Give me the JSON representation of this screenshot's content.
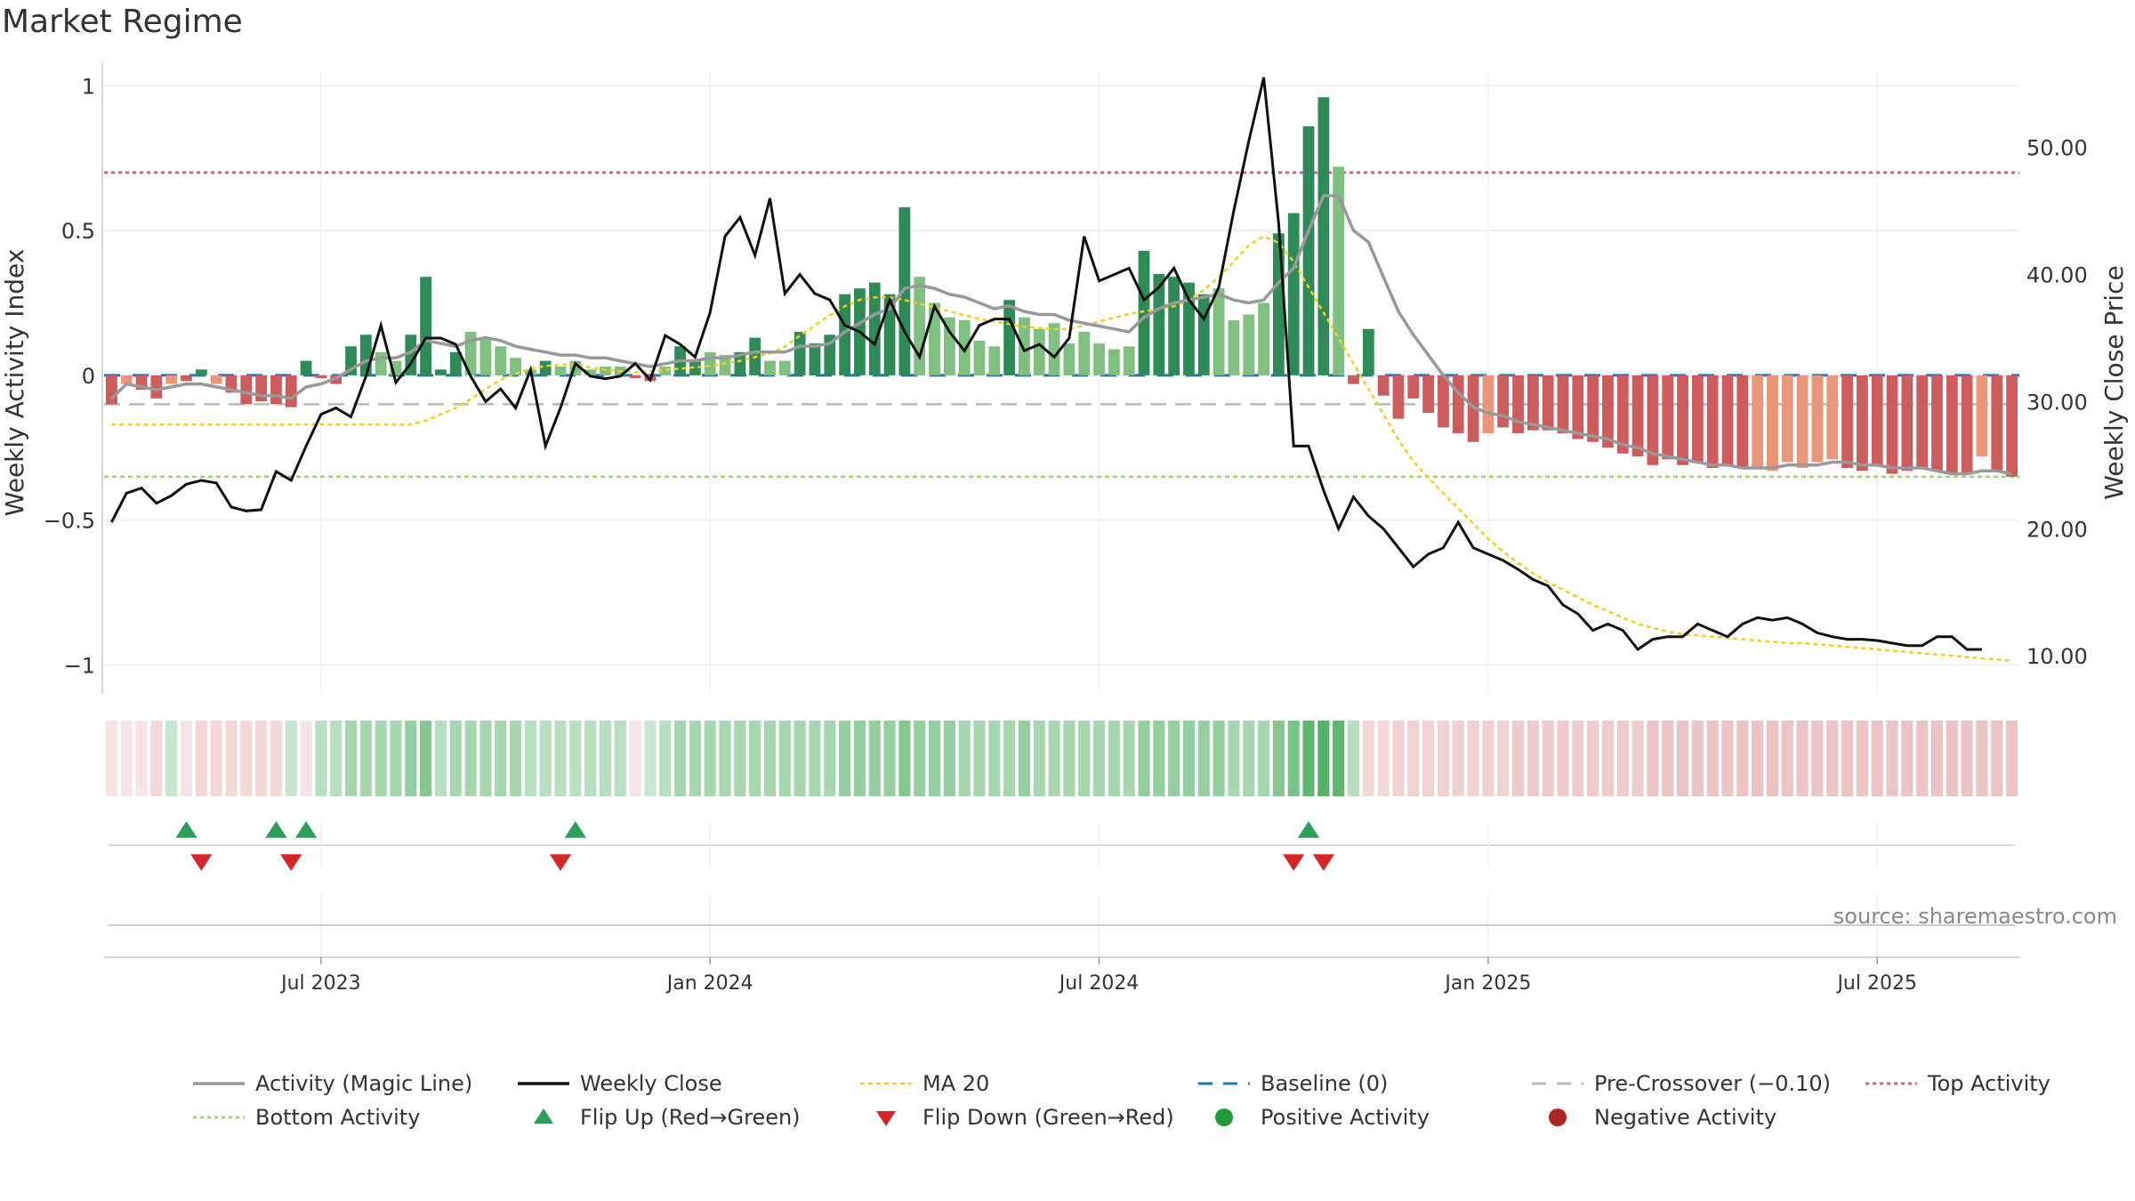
{
  "chart_data": {
    "type": "bar",
    "title": "Market Regime",
    "source_note": "source: sharemaestro.com",
    "left_axis": {
      "label": "Weekly Activity Index",
      "min": -1.1,
      "max": 1.05,
      "ticks": [
        1,
        0.5,
        0,
        -0.5,
        -1
      ],
      "tick_labels": [
        "1",
        "0.5",
        "0",
        "−0.5",
        "−1"
      ]
    },
    "right_axis": {
      "label": "Weekly Close Price",
      "min": 7.0,
      "max": 56.0,
      "ticks": [
        50,
        40,
        30,
        20,
        10
      ],
      "tick_labels": [
        "50.00",
        "40.00",
        "30.00",
        "20.00",
        "10.00"
      ]
    },
    "x_axis": {
      "tick_labels": [
        "Jul 2023",
        "Jan 2024",
        "Jul 2024",
        "Jan 2025",
        "Jul 2025"
      ],
      "tick_weeks": [
        14,
        40,
        66,
        92,
        118
      ]
    },
    "reference_lines": {
      "baseline": 0,
      "pre_crossover": -0.1,
      "top_activity": 0.7,
      "bottom_activity": -0.35
    },
    "colors": {
      "dark_green": "#2e8b57",
      "light_green": "#7fbf7f",
      "dark_red": "#cd5c5c",
      "light_red": "#e9967a",
      "magic_line": "#999999",
      "weekly_close": "#111111",
      "ma20": "#f0d020",
      "baseline": "#1f77b4",
      "pre_crossover": "#bbbbbb",
      "top_activity": "#d6608a",
      "bottom_activity": "#9ad46a",
      "flip_up": "#2ca05a",
      "flip_down": "#d62728"
    },
    "activity": [
      -0.1,
      -0.03,
      -0.05,
      -0.08,
      -0.03,
      -0.02,
      0.02,
      -0.03,
      -0.06,
      -0.1,
      -0.09,
      -0.1,
      -0.11,
      0.05,
      -0.01,
      -0.03,
      0.1,
      0.14,
      0.08,
      0.05,
      0.14,
      0.34,
      0.02,
      0.08,
      0.15,
      0.13,
      0.1,
      0.06,
      0.02,
      0.05,
      0.03,
      0.05,
      0.02,
      0.03,
      0.03,
      -0.01,
      -0.02,
      0.03,
      0.1,
      0.05,
      0.08,
      0.07,
      0.08,
      0.13,
      0.05,
      0.05,
      0.15,
      0.11,
      0.14,
      0.28,
      0.3,
      0.32,
      0.28,
      0.58,
      0.34,
      0.25,
      0.2,
      0.19,
      0.12,
      0.1,
      0.26,
      0.2,
      0.16,
      0.18,
      0.11,
      0.15,
      0.11,
      0.09,
      0.1,
      0.43,
      0.35,
      0.34,
      0.32,
      0.28,
      0.3,
      0.19,
      0.21,
      0.25,
      0.49,
      0.56,
      0.86,
      0.96,
      0.72,
      -0.03,
      0.16,
      -0.07,
      -0.15,
      -0.08,
      -0.13,
      -0.18,
      -0.2,
      -0.23,
      -0.2,
      -0.18,
      -0.2,
      -0.19,
      -0.19,
      -0.2,
      -0.22,
      -0.23,
      -0.25,
      -0.27,
      -0.28,
      -0.31,
      -0.29,
      -0.31,
      -0.3,
      -0.32,
      -0.31,
      -0.32,
      -0.32,
      -0.33,
      -0.3,
      -0.32,
      -0.3,
      -0.29,
      -0.32,
      -0.33,
      -0.31,
      -0.34,
      -0.33,
      -0.32,
      -0.33,
      -0.34,
      -0.34,
      -0.28,
      -0.33,
      -0.35
    ],
    "bar_shade": [
      "d",
      "l",
      "d",
      "d",
      "l",
      "d",
      "d",
      "l",
      "d",
      "d",
      "d",
      "d",
      "d",
      "d",
      "d",
      "d",
      "d",
      "d",
      "l",
      "l",
      "d",
      "d",
      "d",
      "d",
      "l",
      "l",
      "l",
      "l",
      "l",
      "d",
      "l",
      "l",
      "l",
      "l",
      "l",
      "d",
      "d",
      "l",
      "d",
      "d",
      "l",
      "l",
      "d",
      "d",
      "l",
      "l",
      "d",
      "d",
      "d",
      "d",
      "d",
      "d",
      "d",
      "d",
      "l",
      "l",
      "l",
      "l",
      "l",
      "l",
      "d",
      "l",
      "l",
      "l",
      "l",
      "l",
      "l",
      "l",
      "l",
      "d",
      "d",
      "d",
      "d",
      "d",
      "l",
      "l",
      "l",
      "l",
      "d",
      "d",
      "d",
      "d",
      "l",
      "d",
      "d",
      "d",
      "d",
      "d",
      "d",
      "d",
      "d",
      "d",
      "l",
      "d",
      "d",
      "d",
      "d",
      "d",
      "d",
      "d",
      "d",
      "d",
      "d",
      "d",
      "d",
      "d",
      "d",
      "d",
      "d",
      "d",
      "l",
      "l",
      "l",
      "l",
      "l",
      "l",
      "d",
      "d",
      "d",
      "d",
      "d",
      "d",
      "d",
      "d",
      "d",
      "l",
      "d",
      "d"
    ],
    "regime_strip": [
      -0.2,
      -0.2,
      -0.2,
      -0.3,
      0.3,
      -0.2,
      -0.3,
      -0.3,
      -0.3,
      -0.3,
      -0.3,
      -0.3,
      0.3,
      -0.2,
      0.4,
      0.4,
      0.5,
      0.5,
      0.5,
      0.5,
      0.6,
      0.7,
      0.4,
      0.5,
      0.5,
      0.5,
      0.5,
      0.5,
      0.4,
      0.4,
      0.4,
      0.4,
      0.4,
      0.4,
      0.4,
      -0.2,
      0.3,
      0.4,
      0.5,
      0.5,
      0.5,
      0.5,
      0.5,
      0.5,
      0.5,
      0.5,
      0.5,
      0.5,
      0.5,
      0.6,
      0.6,
      0.6,
      0.6,
      0.7,
      0.6,
      0.6,
      0.6,
      0.5,
      0.5,
      0.5,
      0.5,
      0.6,
      0.5,
      0.5,
      0.5,
      0.5,
      0.5,
      0.5,
      0.5,
      0.6,
      0.6,
      0.6,
      0.6,
      0.6,
      0.6,
      0.5,
      0.5,
      0.5,
      0.7,
      0.75,
      0.9,
      0.95,
      0.9,
      0.4,
      -0.3,
      -0.3,
      -0.35,
      -0.35,
      -0.35,
      -0.35,
      -0.35,
      -0.35,
      -0.35,
      -0.35,
      -0.4,
      -0.4,
      -0.4,
      -0.4,
      -0.4,
      -0.4,
      -0.4,
      -0.4,
      -0.4,
      -0.45,
      -0.45,
      -0.45,
      -0.45,
      -0.45,
      -0.45,
      -0.45,
      -0.45,
      -0.45,
      -0.45,
      -0.45,
      -0.45,
      -0.45,
      -0.45,
      -0.45,
      -0.45,
      -0.45,
      -0.45,
      -0.45,
      -0.45,
      -0.45,
      -0.45,
      -0.45,
      -0.45,
      -0.45
    ],
    "magic_line": [
      -0.08,
      -0.03,
      -0.04,
      -0.05,
      -0.04,
      -0.03,
      -0.03,
      -0.04,
      -0.05,
      -0.06,
      -0.07,
      -0.07,
      -0.08,
      -0.04,
      -0.03,
      -0.01,
      0.02,
      0.05,
      0.06,
      0.06,
      0.08,
      0.12,
      0.11,
      0.1,
      0.12,
      0.13,
      0.12,
      0.1,
      0.09,
      0.08,
      0.07,
      0.07,
      0.06,
      0.06,
      0.05,
      0.04,
      0.03,
      0.04,
      0.05,
      0.05,
      0.06,
      0.06,
      0.07,
      0.08,
      0.08,
      0.08,
      0.1,
      0.1,
      0.11,
      0.15,
      0.18,
      0.21,
      0.23,
      0.3,
      0.31,
      0.3,
      0.28,
      0.27,
      0.25,
      0.23,
      0.24,
      0.22,
      0.21,
      0.21,
      0.19,
      0.18,
      0.17,
      0.16,
      0.15,
      0.2,
      0.23,
      0.25,
      0.26,
      0.27,
      0.28,
      0.26,
      0.25,
      0.26,
      0.32,
      0.37,
      0.5,
      0.62,
      0.62,
      0.5,
      0.46,
      0.34,
      0.22,
      0.14,
      0.07,
      0.0,
      -0.06,
      -0.11,
      -0.13,
      -0.14,
      -0.16,
      -0.17,
      -0.18,
      -0.19,
      -0.2,
      -0.21,
      -0.22,
      -0.24,
      -0.25,
      -0.27,
      -0.28,
      -0.29,
      -0.3,
      -0.31,
      -0.31,
      -0.32,
      -0.32,
      -0.32,
      -0.31,
      -0.31,
      -0.31,
      -0.3,
      -0.3,
      -0.31,
      -0.31,
      -0.32,
      -0.32,
      -0.32,
      -0.33,
      -0.34,
      -0.34,
      -0.33,
      -0.33,
      -0.34
    ],
    "weekly_close": [
      20.5,
      22.8,
      23.2,
      22.0,
      22.6,
      23.5,
      23.8,
      23.6,
      21.7,
      21.4,
      21.5,
      24.5,
      23.8,
      26.5,
      29.0,
      29.5,
      28.8,
      32.0,
      36.0,
      31.5,
      33.0,
      35.0,
      35.0,
      34.5,
      32.0,
      30.0,
      31.0,
      29.5,
      32.5,
      26.5,
      29.5,
      33.0,
      32.0,
      31.8,
      32.0,
      33.0,
      31.7,
      35.2,
      34.5,
      33.5,
      37.0,
      43.0,
      44.5,
      41.5,
      46.0,
      38.5,
      40.0,
      38.5,
      38.0,
      36.0,
      35.5,
      34.5,
      38.0,
      35.5,
      33.5,
      37.5,
      35.5,
      34.0,
      36.0,
      36.5,
      36.5,
      34.0,
      34.5,
      33.5,
      35.0,
      43.0,
      39.5,
      40.0,
      40.5,
      38.0,
      39.0,
      40.5,
      38.0,
      36.5,
      39.0,
      45.0,
      50.5,
      55.5,
      44.0,
      26.5,
      26.5,
      23.0,
      20.0,
      22.5,
      21.0,
      20.0,
      18.5,
      17.0,
      18.0,
      18.5,
      20.5,
      18.5,
      18.0,
      17.5,
      16.8,
      16.0,
      15.5,
      14.0,
      13.3,
      12.0,
      12.5,
      12.0,
      10.5,
      11.3,
      11.5,
      11.5,
      12.5,
      12.0,
      11.5,
      12.5,
      13.0,
      12.8,
      13.0,
      12.5,
      11.8,
      11.5,
      11.3,
      11.3,
      11.2,
      11.0,
      10.8,
      10.8,
      11.5,
      11.5,
      10.5,
      10.5
    ],
    "ma20": [
      28.2,
      28.2,
      28.2,
      28.2,
      28.2,
      28.2,
      28.2,
      28.2,
      28.2,
      28.2,
      28.2,
      28.2,
      28.2,
      28.2,
      28.2,
      28.2,
      28.2,
      28.2,
      28.2,
      28.2,
      28.2,
      28.5,
      29.0,
      29.5,
      30.2,
      31.0,
      31.7,
      32.2,
      32.6,
      32.8,
      32.9,
      32.9,
      32.7,
      32.5,
      32.4,
      32.3,
      32.4,
      32.5,
      32.6,
      32.7,
      32.8,
      33.0,
      33.2,
      33.5,
      33.8,
      34.3,
      35.2,
      36.0,
      36.8,
      37.5,
      38.0,
      38.2,
      38.2,
      38.0,
      37.7,
      37.4,
      37.1,
      36.8,
      36.5,
      36.3,
      36.1,
      35.9,
      35.8,
      35.7,
      35.7,
      36.0,
      36.3,
      36.6,
      36.9,
      37.1,
      37.3,
      37.5,
      38.0,
      38.8,
      39.8,
      41.0,
      42.3,
      43.0,
      42.5,
      41.0,
      39.0,
      37.0,
      35.0,
      33.0,
      31.0,
      29.0,
      27.0,
      25.3,
      24.0,
      22.8,
      21.6,
      20.4,
      19.2,
      18.2,
      17.3,
      16.5,
      15.8,
      15.2,
      14.6,
      14.0,
      13.5,
      13.0,
      12.5,
      12.2,
      11.9,
      11.7,
      11.6,
      11.5,
      11.4,
      11.3,
      11.2,
      11.1,
      11.0,
      11.0,
      10.9,
      10.8,
      10.7,
      10.6,
      10.5,
      10.4,
      10.3,
      10.2,
      10.1,
      10.0,
      9.9,
      9.8,
      9.7,
      9.6
    ],
    "flip_up_weeks": [
      5,
      11,
      13,
      31,
      80
    ],
    "flip_down_weeks": [
      6,
      12,
      30,
      79,
      81
    ],
    "legend": [
      {
        "key": "magic_line",
        "label": "Activity (Magic Line)"
      },
      {
        "key": "weekly_close",
        "label": "Weekly Close"
      },
      {
        "key": "ma20",
        "label": "MA 20"
      },
      {
        "key": "baseline",
        "label": "Baseline (0)"
      },
      {
        "key": "pre_crossover",
        "label": "Pre-Crossover (−0.10)"
      },
      {
        "key": "top_activity",
        "label": "Top Activity"
      },
      {
        "key": "bottom_activity",
        "label": "Bottom Activity"
      },
      {
        "key": "flip_up",
        "label": "Flip Up (Red→Green)"
      },
      {
        "key": "flip_down",
        "label": "Flip Down (Green→Red)"
      },
      {
        "key": "positive",
        "label": "Positive Activity"
      },
      {
        "key": "negative",
        "label": "Negative Activity"
      }
    ]
  }
}
